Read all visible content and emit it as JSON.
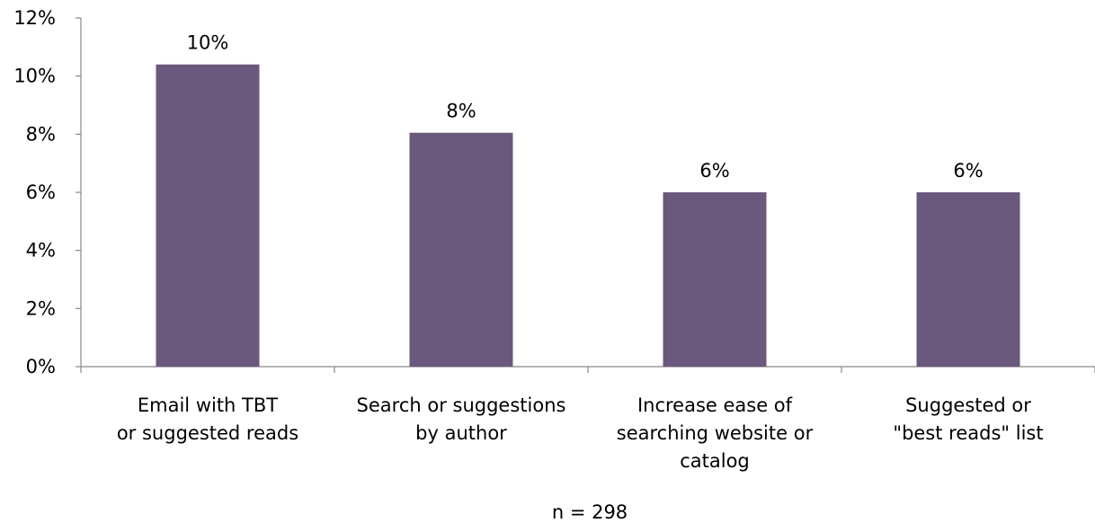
{
  "chart_data": {
    "type": "bar",
    "categories": [
      [
        "Email with TBT",
        "or suggested reads"
      ],
      [
        "Search or suggestions",
        "by author"
      ],
      [
        "Increase ease of",
        "searching website or",
        "catalog"
      ],
      [
        "Suggested or",
        "\"best reads\" list"
      ]
    ],
    "values": [
      10.4,
      8.05,
      6.0,
      6.0
    ],
    "data_labels": [
      "10%",
      "8%",
      "6%",
      "6%"
    ],
    "ylim": [
      0,
      12
    ],
    "yticks": [
      0,
      2,
      4,
      6,
      8,
      10,
      12
    ],
    "ytick_labels": [
      "0%",
      "2%",
      "4%",
      "6%",
      "8%",
      "10%",
      "12%"
    ],
    "footnote": "n = 298",
    "bar_color": "#6b587d",
    "grid": false
  }
}
